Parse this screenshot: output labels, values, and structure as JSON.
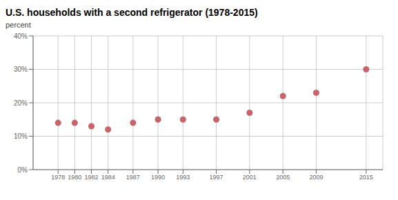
{
  "chart_data": {
    "type": "scatter",
    "title": "U.S. households with a second refrigerator (1978-2015)",
    "ylabel": "percent",
    "x": [
      1978,
      1980,
      1982,
      1984,
      1987,
      1990,
      1993,
      1997,
      2001,
      2005,
      2009,
      2015
    ],
    "values": [
      14,
      14,
      13,
      12,
      14,
      15,
      15,
      15,
      17,
      22,
      23,
      30
    ],
    "color": "#c9636a",
    "xlim": [
      1975,
      2017
    ],
    "ylim": [
      0,
      40
    ],
    "xticks": [
      1978,
      1980,
      1982,
      1984,
      1987,
      1990,
      1993,
      1997,
      2001,
      2005,
      2009,
      2015
    ],
    "yticks": [
      {
        "value": 0,
        "label": "0%"
      },
      {
        "value": 10,
        "label": "10%"
      },
      {
        "value": 20,
        "label": "20%"
      },
      {
        "value": 30,
        "label": "30%"
      },
      {
        "value": 40,
        "label": "40%"
      }
    ],
    "grid": true
  }
}
